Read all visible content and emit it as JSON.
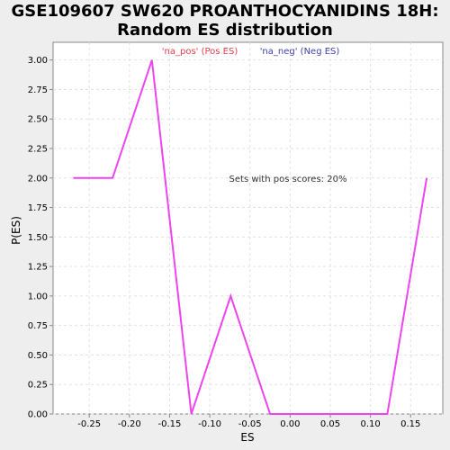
{
  "chart_data": {
    "type": "line",
    "title_line1": "GSE109607 SW620 PROANTHOCYANIDINS 18H:",
    "title_line2": "Random ES distribution",
    "xlabel": "ES",
    "ylabel": "P(ES)",
    "xlim": [
      -0.295,
      0.19
    ],
    "ylim": [
      0,
      3.15
    ],
    "x_ticks": [
      -0.25,
      -0.2,
      -0.15,
      -0.1,
      -0.05,
      0.0,
      0.05,
      0.1,
      0.15
    ],
    "x_tick_labels": [
      "-0.25",
      "-0.20",
      "-0.15",
      "-0.10",
      "-0.05",
      "0.00",
      "0.05",
      "0.10",
      "0.15"
    ],
    "y_ticks": [
      0,
      0.25,
      0.5,
      0.75,
      1.0,
      1.25,
      1.5,
      1.75,
      2.0,
      2.25,
      2.5,
      2.75,
      3.0
    ],
    "y_tick_labels": [
      "0.00",
      "0.25",
      "0.50",
      "0.75",
      "1.00",
      "1.25",
      "1.50",
      "1.75",
      "2.00",
      "2.25",
      "2.50",
      "2.75",
      "3.00"
    ],
    "grid": true,
    "legend": [
      {
        "label": "'na_pos' (Pos ES)",
        "color": "#e0404a"
      },
      {
        "label": "'na_neg' (Neg ES)",
        "color": "#4040b0"
      }
    ],
    "annotation": "Sets with pos scores: 20%",
    "series": [
      {
        "color": "#ee44ee",
        "x": [
          -0.27,
          -0.221,
          -0.172,
          -0.123,
          -0.074,
          -0.025,
          0.024,
          0.072,
          0.121,
          0.17
        ],
        "y": [
          2.0,
          2.0,
          3.0,
          0.0,
          1.0,
          0.0,
          0.0,
          0.0,
          0.0,
          2.0
        ]
      }
    ]
  }
}
